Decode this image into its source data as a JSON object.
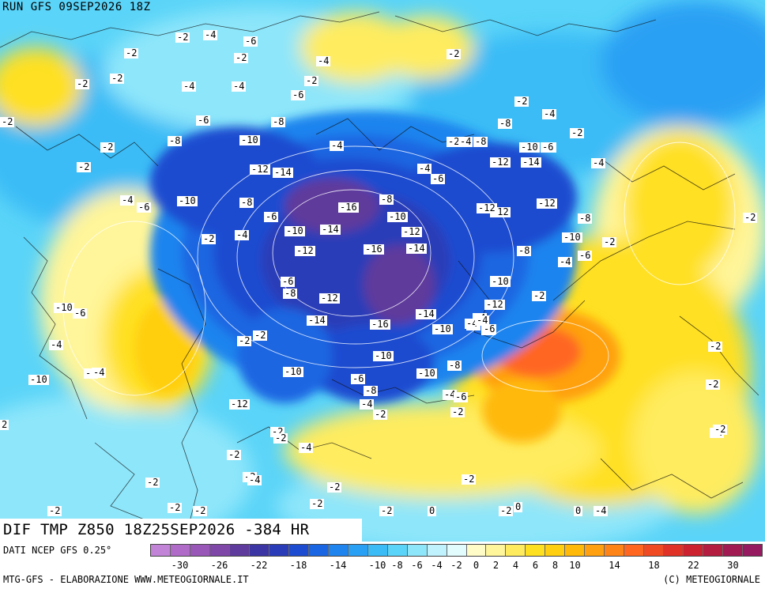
{
  "header": {
    "run_title": "RUN GFS 09SEP2026 18Z"
  },
  "product": {
    "title": "DIF TMP Z850 18Z25SEP2026 -384 HR"
  },
  "footer": {
    "source": "DATI NCEP GFS 0.25°",
    "credit": "MTG-GFS - ELABORAZIONE WWW.METEOGIORNALE.IT",
    "copyright": "(C) METEOGIORNALE"
  },
  "legend": {
    "colors": [
      "#c284d6",
      "#b06bc8",
      "#9958b8",
      "#7f47a8",
      "#5e3b9c",
      "#3c36a4",
      "#2a3cb8",
      "#1e4cd0",
      "#1a66e2",
      "#1f84ee",
      "#2aa0f4",
      "#3bbcf6",
      "#5ad4f8",
      "#8ee6fa",
      "#bff2fc",
      "#e2fbfd",
      "#fffcc8",
      "#fff59a",
      "#ffec5e",
      "#ffe020",
      "#ffcf10",
      "#ffb908",
      "#ffa010",
      "#ff8418",
      "#ff6620",
      "#f04a22",
      "#e03226",
      "#cc2230",
      "#b41c40",
      "#a21a52",
      "#951a60"
    ],
    "tick_labels": [
      "-30",
      "-26",
      "-22",
      "-18",
      "-14",
      "-10",
      "-8",
      "-6",
      "-4",
      "-2",
      "0",
      "2",
      "4",
      "6",
      "8",
      "10",
      "14",
      "18",
      "22",
      "30"
    ]
  },
  "map_labels": [
    {
      "text": "-2"
    },
    {
      "text": "-4"
    },
    {
      "text": "-6"
    },
    {
      "text": "-2"
    },
    {
      "text": "-2"
    },
    {
      "text": "-4"
    },
    {
      "text": "-2"
    },
    {
      "text": "-2"
    },
    {
      "text": "-4"
    },
    {
      "text": "-2"
    },
    {
      "text": "-4"
    },
    {
      "text": "-6"
    },
    {
      "text": "-2"
    },
    {
      "text": "-6"
    },
    {
      "text": "-8"
    },
    {
      "text": "-8"
    },
    {
      "text": "-10"
    },
    {
      "text": "-4"
    },
    {
      "text": "-2"
    },
    {
      "text": "-2"
    },
    {
      "text": "-12"
    },
    {
      "text": "-14"
    },
    {
      "text": "-4"
    },
    {
      "text": "-6"
    },
    {
      "text": "-10"
    },
    {
      "text": "-8"
    },
    {
      "text": "-6"
    },
    {
      "text": "-2"
    },
    {
      "text": "-4"
    },
    {
      "text": "-10"
    },
    {
      "text": "-12"
    },
    {
      "text": "-16"
    },
    {
      "text": "-14"
    },
    {
      "text": "-8"
    },
    {
      "text": "-10"
    },
    {
      "text": "-12"
    },
    {
      "text": "-16"
    },
    {
      "text": "-14"
    },
    {
      "text": "-6"
    },
    {
      "text": "-8"
    },
    {
      "text": "-12"
    },
    {
      "text": "-14"
    },
    {
      "text": "-16"
    },
    {
      "text": "-14"
    },
    {
      "text": "-10"
    },
    {
      "text": "-12"
    },
    {
      "text": "-10"
    },
    {
      "text": "-10"
    },
    {
      "text": "-10"
    },
    {
      "text": "-6"
    },
    {
      "text": "-8"
    },
    {
      "text": "-4"
    },
    {
      "text": "-2"
    },
    {
      "text": "-10"
    },
    {
      "text": "-8"
    },
    {
      "text": "-4"
    },
    {
      "text": "-6"
    },
    {
      "text": "-2"
    },
    {
      "text": "-2"
    },
    {
      "text": "-6"
    },
    {
      "text": "-4"
    },
    {
      "text": "-2"
    },
    {
      "text": "-4"
    },
    {
      "text": "-6"
    },
    {
      "text": "-8"
    },
    {
      "text": "-4"
    },
    {
      "text": "-2"
    },
    {
      "text": "-4"
    },
    {
      "text": "-6"
    },
    {
      "text": "-8"
    },
    {
      "text": "-10"
    },
    {
      "text": "-6"
    },
    {
      "text": "-12"
    },
    {
      "text": "-14"
    },
    {
      "text": "-2"
    },
    {
      "text": "-4"
    },
    {
      "text": "-12"
    },
    {
      "text": "-12"
    },
    {
      "text": "-8"
    },
    {
      "text": "-10"
    },
    {
      "text": "-2"
    },
    {
      "text": "-8"
    },
    {
      "text": "-6"
    },
    {
      "text": "-4"
    },
    {
      "text": "-10"
    },
    {
      "text": "-12"
    },
    {
      "text": "-2"
    },
    {
      "text": "-4"
    },
    {
      "text": "-4"
    },
    {
      "text": "-6"
    },
    {
      "text": "-2"
    },
    {
      "text": "-2"
    },
    {
      "text": "-4"
    },
    {
      "text": "-10"
    },
    {
      "text": "-6"
    },
    {
      "text": "-10"
    },
    {
      "text": "-8"
    },
    {
      "text": "-4"
    },
    {
      "text": "-12"
    },
    {
      "text": "-2"
    },
    {
      "text": "-2"
    },
    {
      "text": "-4"
    },
    {
      "text": "-2"
    },
    {
      "text": "-2"
    },
    {
      "text": "-2"
    },
    {
      "text": "-2"
    },
    {
      "text": "-2"
    },
    {
      "text": "0"
    },
    {
      "text": "0"
    },
    {
      "text": "0"
    },
    {
      "text": "-2"
    },
    {
      "text": "-2"
    },
    {
      "text": "-4"
    },
    {
      "text": "-2"
    },
    {
      "text": "-2"
    },
    {
      "text": "-2"
    },
    {
      "text": "-2"
    },
    {
      "text": "-4"
    },
    {
      "text": "-2"
    },
    {
      "text": "-2"
    },
    {
      "text": "-4"
    },
    {
      "text": "-2"
    },
    {
      "text": "-2"
    },
    {
      "text": "2"
    },
    {
      "text": "-2"
    }
  ]
}
